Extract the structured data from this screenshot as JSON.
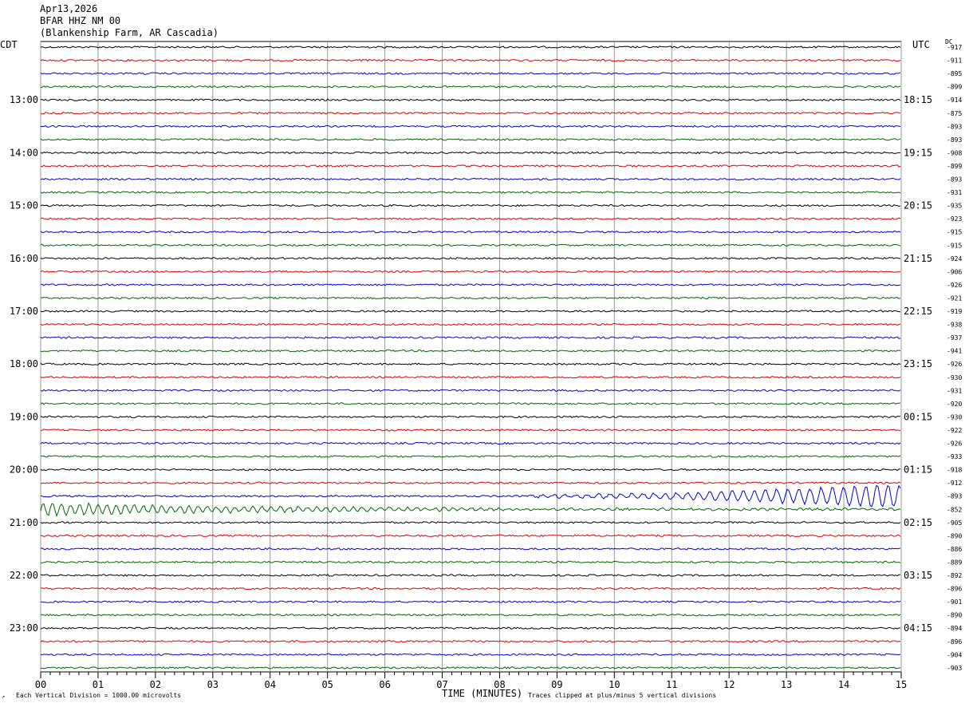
{
  "header": {
    "date": "Apr13,2026",
    "station": "BFAR HHZ NM 00",
    "location": "(Blankenship Farm, AR Cascadia)"
  },
  "left_tz": "CDT",
  "right_tz": "UTC",
  "dc_label": "DC",
  "footer": {
    "scale_note": "Each Vertical Division = 1000.00 microvolts",
    "xaxis_title": "TIME (MINUTES)",
    "clip_note": "Traces clipped at plus/minus 5 vertical divisions"
  },
  "chart_data": {
    "type": "line",
    "title": "BFAR HHZ NM 00",
    "xlabel": "TIME (MINUTES)",
    "xlim": [
      0,
      15
    ],
    "x_ticks": [
      "00",
      "01",
      "02",
      "03",
      "04",
      "05",
      "06",
      "07",
      "08",
      "09",
      "10",
      "11",
      "12",
      "13",
      "14",
      "15"
    ],
    "trace_colors": [
      "#000000",
      "#dd0000",
      "#0000cc",
      "#006600"
    ],
    "left_hour_labels": [
      "13:00",
      "14:00",
      "15:00",
      "16:00",
      "17:00",
      "18:00",
      "19:00",
      "20:00",
      "21:00",
      "22:00",
      "23:00"
    ],
    "right_hour_labels": [
      "18:15",
      "19:15",
      "20:15",
      "21:15",
      "22:15",
      "23:15",
      "00:15",
      "01:15",
      "02:15",
      "03:15",
      "04:15"
    ],
    "dc_offsets": [
      -917,
      -911,
      -895,
      -899,
      -914,
      -875,
      -893,
      -893,
      -908,
      -899,
      -893,
      -931,
      -935,
      -923,
      -915,
      -915,
      -924,
      -906,
      -926,
      -921,
      -919,
      -938,
      -937,
      -941,
      -926,
      -930,
      -931,
      -920,
      -930,
      -922,
      -926,
      -933,
      -918,
      -912,
      -893,
      -852,
      -905,
      -890,
      -886,
      -889,
      -892,
      -896,
      -901,
      -890,
      -894,
      -896,
      -904,
      -903
    ],
    "event_traces": [
      {
        "trace_index": 34,
        "description": "increasing oscillation from ~09 to 15 min"
      },
      {
        "trace_index": 35,
        "description": "large oscillation from 00 to ~07 min, decaying"
      }
    ],
    "grid": true
  }
}
